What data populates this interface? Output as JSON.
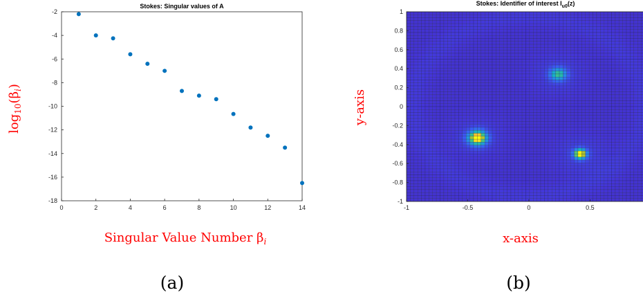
{
  "chart_data": [
    {
      "type": "scatter",
      "title": "Stokes: Singular values of A",
      "xlabel": "Singular Value Number β",
      "xlabel_sub": "i",
      "ylabel": "log",
      "ylabel_sub": "10",
      "ylabel_arg": "(β",
      "ylabel_arg_sub": "i",
      "ylabel_close": ")",
      "xlim": [
        0,
        14
      ],
      "ylim": [
        -18,
        -2
      ],
      "x_ticks": [
        "0",
        "2",
        "4",
        "6",
        "8",
        "10",
        "12",
        "14"
      ],
      "y_ticks": [
        "-2",
        "-4",
        "-6",
        "-8",
        "-10",
        "-12",
        "-14",
        "-16",
        "-18"
      ],
      "marker_color": "#0072bd",
      "points": [
        {
          "x": 1,
          "y": -2.2
        },
        {
          "x": 2,
          "y": -4.0
        },
        {
          "x": 3,
          "y": -4.25
        },
        {
          "x": 4,
          "y": -5.6
        },
        {
          "x": 5,
          "y": -6.4
        },
        {
          "x": 6,
          "y": -7.0
        },
        {
          "x": 7,
          "y": -8.7
        },
        {
          "x": 8,
          "y": -9.1
        },
        {
          "x": 9,
          "y": -9.4
        },
        {
          "x": 10,
          "y": -10.65
        },
        {
          "x": 11,
          "y": -11.8
        },
        {
          "x": 12,
          "y": -12.5
        },
        {
          "x": 13,
          "y": -13.5
        },
        {
          "x": 14,
          "y": -16.5
        }
      ],
      "caption": "(a)"
    },
    {
      "type": "heatmap",
      "title": "Stokes: Identifier of interest I",
      "title_sub": "u0",
      "title_tail": "(z)",
      "xlabel": "x-axis",
      "ylabel": "y-axis",
      "xlim": [
        -1,
        0.95
      ],
      "ylim": [
        -1,
        1
      ],
      "x_ticks": [
        "-1",
        "-0.5",
        "0",
        "0.5"
      ],
      "y_ticks": [
        "1",
        "0.8",
        "0.6",
        "0.4",
        "0.2",
        "0",
        "-0.2",
        "-0.4",
        "-0.6",
        "-0.8",
        "-1"
      ],
      "grid_n": 64,
      "colormap": "parula",
      "background_color": "#3e26a8",
      "ring": {
        "center": [
          0,
          0
        ],
        "radius": 0.95
      },
      "peaks": [
        {
          "x": -0.42,
          "y": -0.33,
          "amplitude": 1.0,
          "spread": 0.05
        },
        {
          "x": 0.24,
          "y": 0.34,
          "amplitude": 0.55,
          "spread": 0.045
        },
        {
          "x": 0.42,
          "y": -0.5,
          "amplitude": 1.0,
          "spread": 0.035
        }
      ],
      "caption": "(b)"
    }
  ]
}
